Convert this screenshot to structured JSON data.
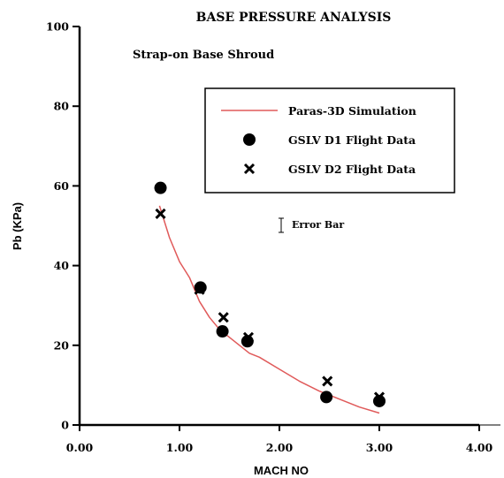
{
  "chart_data": {
    "type": "scatter",
    "title": "BASE PRESSURE ANALYSIS",
    "subtitle": "Strap-on Base Shroud",
    "xlabel": "MACH NO",
    "ylabel": "Pb (KPa)",
    "xlim": [
      0,
      4
    ],
    "ylim": [
      0,
      100
    ],
    "x_ticks": [
      0,
      1,
      2,
      3,
      4
    ],
    "x_tick_labels": [
      "0.00",
      "1.00",
      "2.00",
      "3.00",
      "4.00"
    ],
    "y_ticks": [
      0,
      20,
      40,
      60,
      80,
      100
    ],
    "y_tick_labels": [
      "0",
      "20",
      "40",
      "60",
      "80",
      "100"
    ],
    "grid": false,
    "legend_position": "top-right",
    "series": [
      {
        "name": "Paras-3D Simulation",
        "kind": "line",
        "color": "#e05a5a",
        "x": [
          0.8,
          0.9,
          1.0,
          1.1,
          1.2,
          1.3,
          1.4,
          1.5,
          1.6,
          1.7,
          1.8,
          2.0,
          2.2,
          2.4,
          2.6,
          2.8,
          3.0
        ],
        "y": [
          55,
          47,
          41,
          37,
          31,
          27,
          24,
          22,
          20,
          18,
          17,
          14,
          11,
          8.5,
          6.5,
          4.5,
          3
        ]
      },
      {
        "name": "GSLV D1 Flight Data",
        "kind": "marker-circle",
        "color": "#000000",
        "x": [
          0.81,
          1.21,
          1.43,
          1.68,
          2.47,
          3.0
        ],
        "y": [
          59.5,
          34.5,
          23.5,
          21,
          7,
          6
        ]
      },
      {
        "name": "GSLV D2 Flight Data",
        "kind": "marker-x",
        "color": "#000000",
        "x": [
          0.81,
          1.2,
          1.44,
          1.69,
          2.48,
          3.0
        ],
        "y": [
          53,
          34,
          27,
          22,
          11,
          7
        ]
      }
    ],
    "annotations": [
      {
        "text": "Error Bar",
        "x": 1.11,
        "y": 49.5
      }
    ]
  }
}
